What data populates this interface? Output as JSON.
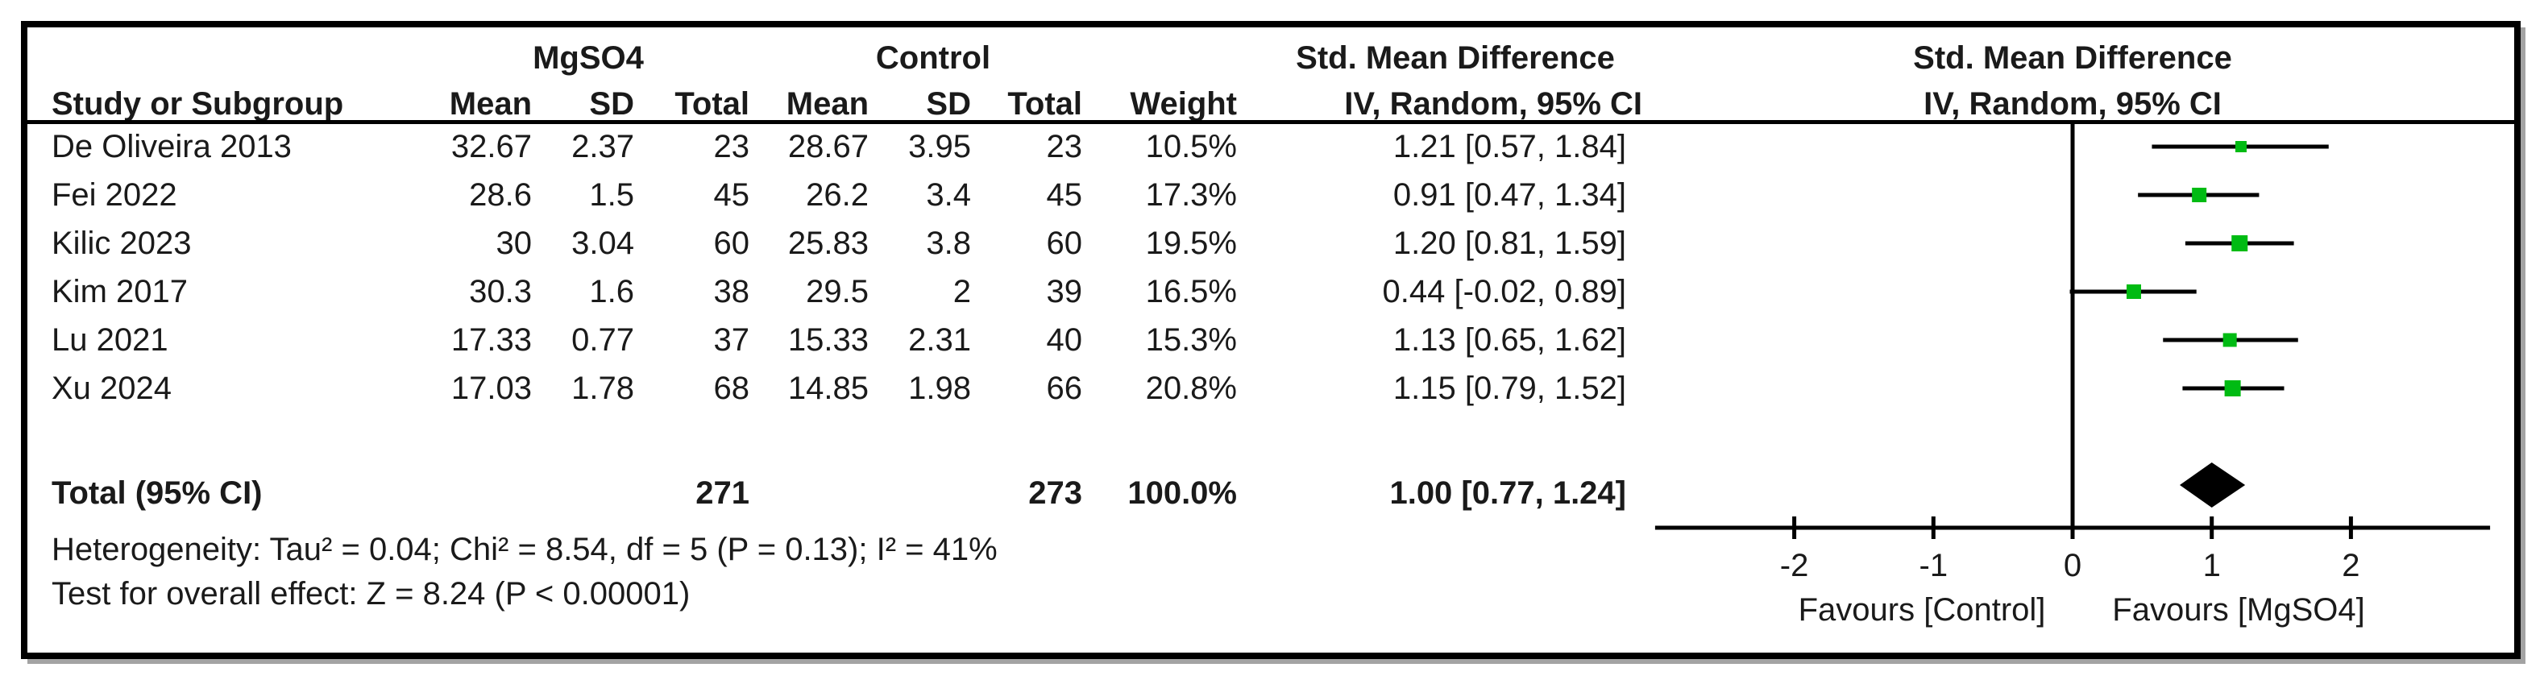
{
  "table": {
    "group_headers": {
      "treatment": "MgSO4",
      "control": "Control",
      "smd_text_col": "Std. Mean Difference",
      "smd_graph_col": "Std. Mean Difference"
    },
    "column_headers": {
      "study": "Study or Subgroup",
      "mean": "Mean",
      "sd": "SD",
      "total": "Total",
      "weight": "Weight",
      "ci_method": "IV, Random, 95% CI"
    },
    "rows": [
      {
        "study": "De Oliveira 2013",
        "mean1": "32.67",
        "sd1": "2.37",
        "total1": "23",
        "mean2": "28.67",
        "sd2": "3.95",
        "total2": "23",
        "weight": "10.5%",
        "ci_text": "1.21 [0.57, 1.84]"
      },
      {
        "study": "Fei 2022",
        "mean1": "28.6",
        "sd1": "1.5",
        "total1": "45",
        "mean2": "26.2",
        "sd2": "3.4",
        "total2": "45",
        "weight": "17.3%",
        "ci_text": "0.91 [0.47, 1.34]"
      },
      {
        "study": "Kilic 2023",
        "mean1": "30",
        "sd1": "3.04",
        "total1": "60",
        "mean2": "25.83",
        "sd2": "3.8",
        "total2": "60",
        "weight": "19.5%",
        "ci_text": "1.20 [0.81, 1.59]"
      },
      {
        "study": "Kim 2017",
        "mean1": "30.3",
        "sd1": "1.6",
        "total1": "38",
        "mean2": "29.5",
        "sd2": "2",
        "total2": "39",
        "weight": "16.5%",
        "ci_text": "0.44 [-0.02, 0.89]"
      },
      {
        "study": "Lu 2021",
        "mean1": "17.33",
        "sd1": "0.77",
        "total1": "37",
        "mean2": "15.33",
        "sd2": "2.31",
        "total2": "40",
        "weight": "15.3%",
        "ci_text": "1.13 [0.65, 1.62]"
      },
      {
        "study": "Xu 2024",
        "mean1": "17.03",
        "sd1": "1.78",
        "total1": "68",
        "mean2": "14.85",
        "sd2": "1.98",
        "total2": "66",
        "weight": "20.8%",
        "ci_text": "1.15 [0.79, 1.52]"
      }
    ],
    "total_row": {
      "label": "Total (95% CI)",
      "total1": "271",
      "total2": "273",
      "weight": "100.0%",
      "ci_text": "1.00 [0.77, 1.24]"
    }
  },
  "footer": {
    "heterogeneity": "Heterogeneity: Tau² = 0.04; Chi² = 8.54, df = 5 (P = 0.13); I² = 41%",
    "overall_effect": "Test for overall effect: Z = 8.24 (P < 0.00001)"
  },
  "chart_data": {
    "type": "forest",
    "effect_measure": "Std. Mean Difference",
    "method": "IV, Random, 95% CI",
    "x_range": [
      -3,
      3
    ],
    "x_ticks": [
      "-2",
      "-1",
      "0",
      "1",
      "2"
    ],
    "tick_values": [
      -2,
      -1,
      0,
      1,
      2
    ],
    "studies": [
      {
        "name": "De Oliveira 2013",
        "smd": 1.21,
        "ci_low": 0.57,
        "ci_high": 1.84,
        "weight_pct": 10.5
      },
      {
        "name": "Fei 2022",
        "smd": 0.91,
        "ci_low": 0.47,
        "ci_high": 1.34,
        "weight_pct": 17.3
      },
      {
        "name": "Kilic 2023",
        "smd": 1.2,
        "ci_low": 0.81,
        "ci_high": 1.59,
        "weight_pct": 19.5
      },
      {
        "name": "Kim 2017",
        "smd": 0.44,
        "ci_low": -0.02,
        "ci_high": 0.89,
        "weight_pct": 16.5
      },
      {
        "name": "Lu 2021",
        "smd": 1.13,
        "ci_low": 0.65,
        "ci_high": 1.62,
        "weight_pct": 15.3
      },
      {
        "name": "Xu 2024",
        "smd": 1.15,
        "ci_low": 0.79,
        "ci_high": 1.52,
        "weight_pct": 20.8
      }
    ],
    "total": {
      "smd": 1.0,
      "ci_low": 0.77,
      "ci_high": 1.24,
      "weight_pct": 100.0
    },
    "favours_left": "Favours [Control]",
    "favours_right": "Favours [MgSO4]",
    "square_color": "#00BB13",
    "line_color": "#000000",
    "diamond_color": "#000000"
  }
}
